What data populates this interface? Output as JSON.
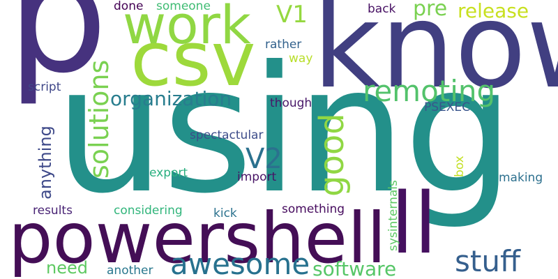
{
  "words": [
    {
      "text": "using",
      "color": "#23908a"
    },
    {
      "text": "know",
      "color": "#413f81"
    },
    {
      "text": "p",
      "color": "#46327e"
    },
    {
      "text": "powershell",
      "color": "#440e56"
    },
    {
      "text": "csv",
      "color": "#9dd93b"
    },
    {
      "text": "work",
      "color": "#90d743"
    },
    {
      "text": "ll",
      "color": "#45105f"
    },
    {
      "text": "awesome",
      "color": "#27718e"
    },
    {
      "text": "stuff",
      "color": "#355f8d"
    },
    {
      "text": "remoting",
      "color": "#53c26b"
    },
    {
      "text": "organization",
      "color": "#287d8e"
    },
    {
      "text": "good",
      "color": "#90d743"
    },
    {
      "text": "solutions",
      "color": "#7ad151"
    },
    {
      "text": "V2",
      "color": "#2b718e"
    },
    {
      "text": "V1",
      "color": "#95d840"
    },
    {
      "text": "release",
      "color": "#c8e020"
    },
    {
      "text": "pre",
      "color": "#7ad151"
    },
    {
      "text": "anything",
      "color": "#3e4989"
    },
    {
      "text": "software",
      "color": "#56c667"
    },
    {
      "text": "need",
      "color": "#5ec962"
    },
    {
      "text": "done",
      "color": "#440154"
    },
    {
      "text": "someone",
      "color": "#3fbc73"
    },
    {
      "text": "back",
      "color": "#471063"
    },
    {
      "text": "rather",
      "color": "#33628d"
    },
    {
      "text": "way",
      "color": "#b8de29"
    },
    {
      "text": "script",
      "color": "#3f4788"
    },
    {
      "text": "though",
      "color": "#481769"
    },
    {
      "text": "PSEXEC",
      "color": "#39558c"
    },
    {
      "text": "spectactular",
      "color": "#3d4d8a"
    },
    {
      "text": "export",
      "color": "#29af7f"
    },
    {
      "text": "import",
      "color": "#471365"
    },
    {
      "text": "box",
      "color": "#c2df23"
    },
    {
      "text": "making",
      "color": "#2d708e"
    },
    {
      "text": "sysinternals",
      "color": "#5cc863"
    },
    {
      "text": "results",
      "color": "#482374"
    },
    {
      "text": "considering",
      "color": "#31b57b"
    },
    {
      "text": "kick",
      "color": "#2c728e"
    },
    {
      "text": "something",
      "color": "#460b5e"
    },
    {
      "text": "another",
      "color": "#2a788e"
    }
  ]
}
